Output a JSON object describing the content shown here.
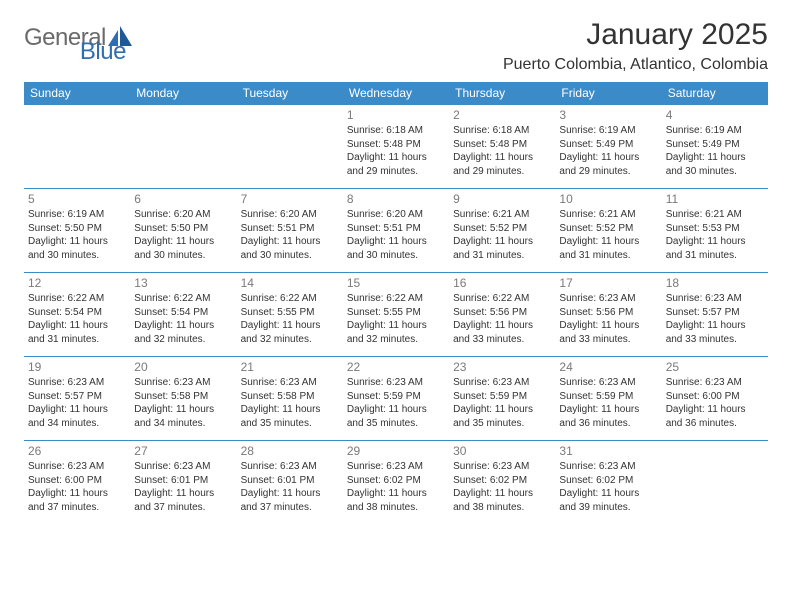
{
  "logo": {
    "part1": "General",
    "part2": "Blue"
  },
  "title": "January 2025",
  "subtitle": "Puerto Colombia, Atlantico, Colombia",
  "colors": {
    "header_bg": "#3b8bc9",
    "header_fg": "#ffffff",
    "border": "#3b8bc9",
    "daynum": "#7a7a7a",
    "body_text": "#333333",
    "logo_gray": "#6a6a6a",
    "logo_blue": "#2f6fb0"
  },
  "weekdays": [
    "Sunday",
    "Monday",
    "Tuesday",
    "Wednesday",
    "Thursday",
    "Friday",
    "Saturday"
  ],
  "weeks": [
    [
      null,
      null,
      null,
      {
        "d": "1",
        "sr": "6:18 AM",
        "ss": "5:48 PM",
        "dl": "11 hours and 29 minutes."
      },
      {
        "d": "2",
        "sr": "6:18 AM",
        "ss": "5:48 PM",
        "dl": "11 hours and 29 minutes."
      },
      {
        "d": "3",
        "sr": "6:19 AM",
        "ss": "5:49 PM",
        "dl": "11 hours and 29 minutes."
      },
      {
        "d": "4",
        "sr": "6:19 AM",
        "ss": "5:49 PM",
        "dl": "11 hours and 30 minutes."
      }
    ],
    [
      {
        "d": "5",
        "sr": "6:19 AM",
        "ss": "5:50 PM",
        "dl": "11 hours and 30 minutes."
      },
      {
        "d": "6",
        "sr": "6:20 AM",
        "ss": "5:50 PM",
        "dl": "11 hours and 30 minutes."
      },
      {
        "d": "7",
        "sr": "6:20 AM",
        "ss": "5:51 PM",
        "dl": "11 hours and 30 minutes."
      },
      {
        "d": "8",
        "sr": "6:20 AM",
        "ss": "5:51 PM",
        "dl": "11 hours and 30 minutes."
      },
      {
        "d": "9",
        "sr": "6:21 AM",
        "ss": "5:52 PM",
        "dl": "11 hours and 31 minutes."
      },
      {
        "d": "10",
        "sr": "6:21 AM",
        "ss": "5:52 PM",
        "dl": "11 hours and 31 minutes."
      },
      {
        "d": "11",
        "sr": "6:21 AM",
        "ss": "5:53 PM",
        "dl": "11 hours and 31 minutes."
      }
    ],
    [
      {
        "d": "12",
        "sr": "6:22 AM",
        "ss": "5:54 PM",
        "dl": "11 hours and 31 minutes."
      },
      {
        "d": "13",
        "sr": "6:22 AM",
        "ss": "5:54 PM",
        "dl": "11 hours and 32 minutes."
      },
      {
        "d": "14",
        "sr": "6:22 AM",
        "ss": "5:55 PM",
        "dl": "11 hours and 32 minutes."
      },
      {
        "d": "15",
        "sr": "6:22 AM",
        "ss": "5:55 PM",
        "dl": "11 hours and 32 minutes."
      },
      {
        "d": "16",
        "sr": "6:22 AM",
        "ss": "5:56 PM",
        "dl": "11 hours and 33 minutes."
      },
      {
        "d": "17",
        "sr": "6:23 AM",
        "ss": "5:56 PM",
        "dl": "11 hours and 33 minutes."
      },
      {
        "d": "18",
        "sr": "6:23 AM",
        "ss": "5:57 PM",
        "dl": "11 hours and 33 minutes."
      }
    ],
    [
      {
        "d": "19",
        "sr": "6:23 AM",
        "ss": "5:57 PM",
        "dl": "11 hours and 34 minutes."
      },
      {
        "d": "20",
        "sr": "6:23 AM",
        "ss": "5:58 PM",
        "dl": "11 hours and 34 minutes."
      },
      {
        "d": "21",
        "sr": "6:23 AM",
        "ss": "5:58 PM",
        "dl": "11 hours and 35 minutes."
      },
      {
        "d": "22",
        "sr": "6:23 AM",
        "ss": "5:59 PM",
        "dl": "11 hours and 35 minutes."
      },
      {
        "d": "23",
        "sr": "6:23 AM",
        "ss": "5:59 PM",
        "dl": "11 hours and 35 minutes."
      },
      {
        "d": "24",
        "sr": "6:23 AM",
        "ss": "5:59 PM",
        "dl": "11 hours and 36 minutes."
      },
      {
        "d": "25",
        "sr": "6:23 AM",
        "ss": "6:00 PM",
        "dl": "11 hours and 36 minutes."
      }
    ],
    [
      {
        "d": "26",
        "sr": "6:23 AM",
        "ss": "6:00 PM",
        "dl": "11 hours and 37 minutes."
      },
      {
        "d": "27",
        "sr": "6:23 AM",
        "ss": "6:01 PM",
        "dl": "11 hours and 37 minutes."
      },
      {
        "d": "28",
        "sr": "6:23 AM",
        "ss": "6:01 PM",
        "dl": "11 hours and 37 minutes."
      },
      {
        "d": "29",
        "sr": "6:23 AM",
        "ss": "6:02 PM",
        "dl": "11 hours and 38 minutes."
      },
      {
        "d": "30",
        "sr": "6:23 AM",
        "ss": "6:02 PM",
        "dl": "11 hours and 38 minutes."
      },
      {
        "d": "31",
        "sr": "6:23 AM",
        "ss": "6:02 PM",
        "dl": "11 hours and 39 minutes."
      },
      null
    ]
  ],
  "labels": {
    "sunrise": "Sunrise:",
    "sunset": "Sunset:",
    "daylight": "Daylight:"
  }
}
